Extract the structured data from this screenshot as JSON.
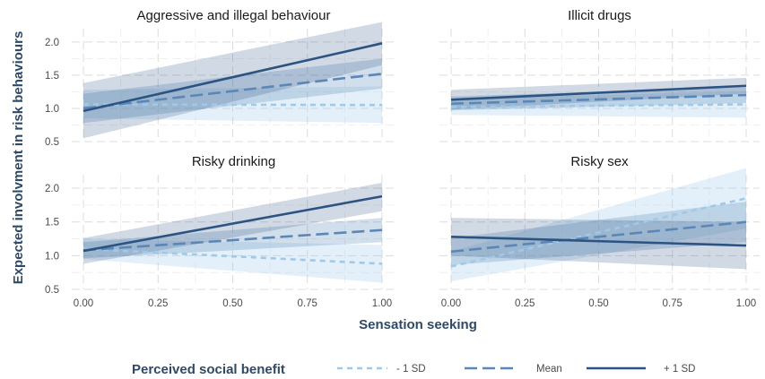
{
  "colors": {
    "minus_1sd": "#9ecae9",
    "mean": "#5b87b6",
    "plus_1sd": "#2c5482"
  },
  "legend": {
    "title": "Perceived social benefit",
    "items": [
      {
        "key": "minus_1sd",
        "label": "- 1 SD",
        "dash": "short"
      },
      {
        "key": "mean",
        "label": "Mean",
        "dash": "long"
      },
      {
        "key": "plus_1sd",
        "label": "+ 1 SD",
        "dash": "solid"
      }
    ]
  },
  "chart_data": {
    "type": "line",
    "xlabel": "Sensation seeking",
    "ylabel": "Expected involvment in risk behaviours",
    "xlim": [
      0,
      1
    ],
    "ylim": [
      0.5,
      2.2
    ],
    "x_ticks": [
      "0.00",
      "0.25",
      "0.50",
      "0.75",
      "1.00"
    ],
    "y_ticks": [
      "0.5",
      "1.0",
      "1.5",
      "2.0"
    ],
    "grid": true,
    "legend_position": "bottom",
    "panels": [
      {
        "title": "Aggressive and illegal behaviour",
        "series": [
          {
            "name": "- 1 SD",
            "x": [
              0,
              1
            ],
            "y": [
              1.06,
              1.05
            ],
            "lower": [
              0.85,
              0.78
            ],
            "upper": [
              1.28,
              1.33
            ]
          },
          {
            "name": "Mean",
            "x": [
              0,
              1
            ],
            "y": [
              1.0,
              1.52
            ],
            "lower": [
              0.78,
              1.3
            ],
            "upper": [
              1.22,
              1.75
            ]
          },
          {
            "name": "+ 1 SD",
            "x": [
              0,
              1
            ],
            "y": [
              0.96,
              1.98
            ],
            "lower": [
              0.55,
              1.65
            ],
            "upper": [
              1.38,
              2.3
            ]
          }
        ]
      },
      {
        "title": "Illicit drugs",
        "series": [
          {
            "name": "- 1 SD",
            "x": [
              0,
              1
            ],
            "y": [
              1.02,
              1.06
            ],
            "lower": [
              0.9,
              0.86
            ],
            "upper": [
              1.14,
              1.26
            ]
          },
          {
            "name": "Mean",
            "x": [
              0,
              1
            ],
            "y": [
              1.07,
              1.2
            ],
            "lower": [
              0.97,
              1.08
            ],
            "upper": [
              1.18,
              1.32
            ]
          },
          {
            "name": "+ 1 SD",
            "x": [
              0,
              1
            ],
            "y": [
              1.13,
              1.34
            ],
            "lower": [
              0.98,
              1.22
            ],
            "upper": [
              1.28,
              1.46
            ]
          }
        ]
      },
      {
        "title": "Risky drinking",
        "series": [
          {
            "name": "- 1 SD",
            "x": [
              0,
              1
            ],
            "y": [
              1.1,
              0.88
            ],
            "lower": [
              0.95,
              0.6
            ],
            "upper": [
              1.25,
              1.16
            ]
          },
          {
            "name": "Mean",
            "x": [
              0,
              1
            ],
            "y": [
              1.08,
              1.38
            ],
            "lower": [
              0.96,
              1.2
            ],
            "upper": [
              1.2,
              1.56
            ]
          },
          {
            "name": "+ 1 SD",
            "x": [
              0,
              1
            ],
            "y": [
              1.07,
              1.88
            ],
            "lower": [
              0.88,
              1.66
            ],
            "upper": [
              1.26,
              2.08
            ]
          }
        ]
      },
      {
        "title": "Risky sex",
        "series": [
          {
            "name": "- 1 SD",
            "x": [
              0,
              1
            ],
            "y": [
              0.84,
              1.85
            ],
            "lower": [
              0.62,
              1.4
            ],
            "upper": [
              1.06,
              2.3
            ]
          },
          {
            "name": "Mean",
            "x": [
              0,
              1
            ],
            "y": [
              1.06,
              1.5
            ],
            "lower": [
              0.86,
              1.2
            ],
            "upper": [
              1.26,
              1.8
            ]
          },
          {
            "name": "+ 1 SD",
            "x": [
              0,
              1
            ],
            "y": [
              1.28,
              1.15
            ],
            "lower": [
              1.0,
              0.8
            ],
            "upper": [
              1.56,
              1.5
            ]
          }
        ]
      }
    ]
  }
}
